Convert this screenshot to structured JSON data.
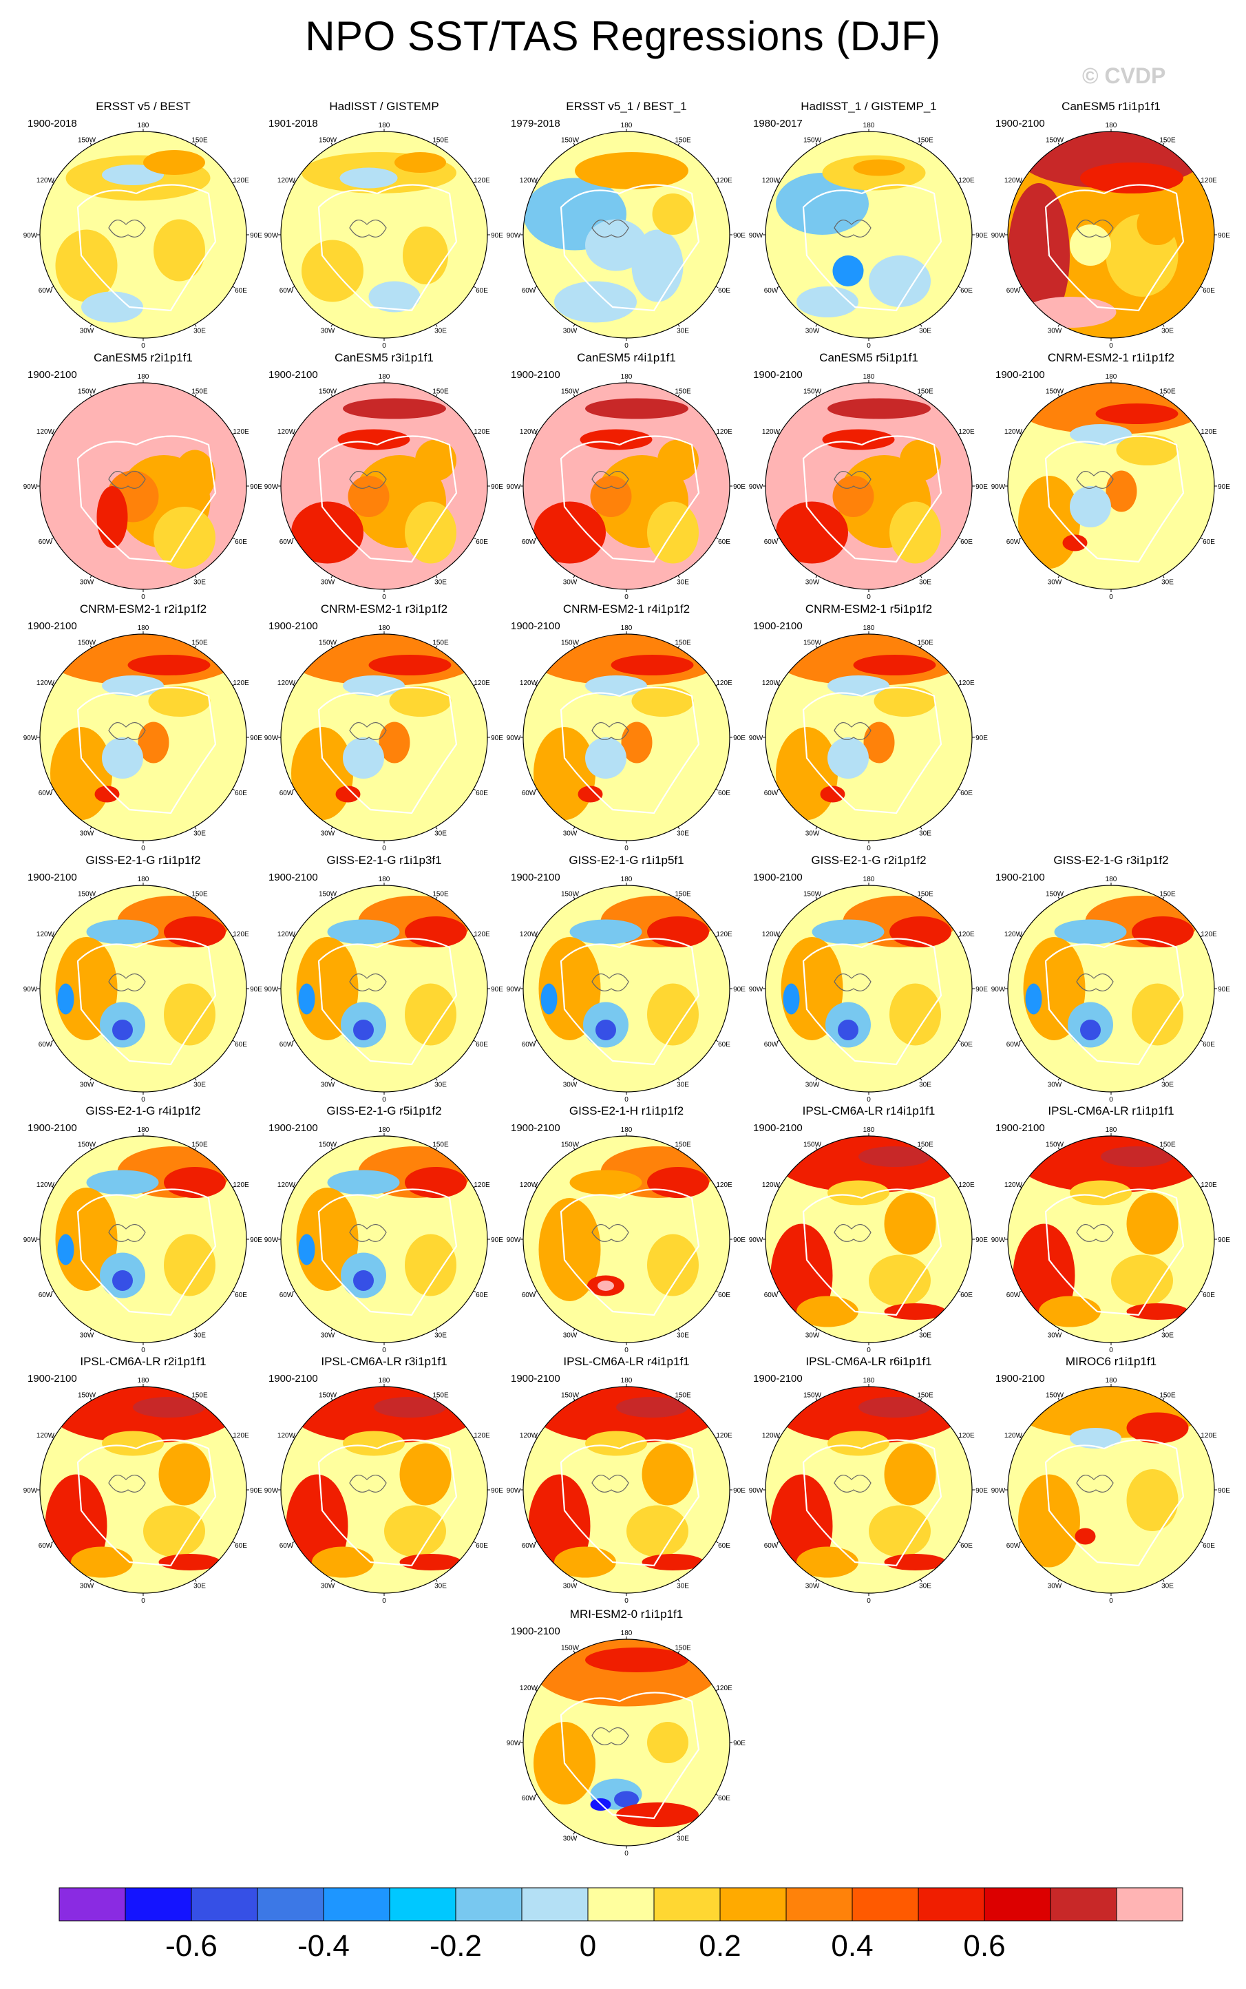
{
  "title": "NPO SST/TAS Regressions (DJF)",
  "watermark": "© CVDP",
  "panels": [
    {
      "title": "ERSST v5 / BEST",
      "years": "1900-2018",
      "style": "obs1"
    },
    {
      "title": "HadISST / GISTEMP",
      "years": "1901-2018",
      "style": "obs2"
    },
    {
      "title": "ERSST v5_1 / BEST_1",
      "years": "1979-2018",
      "style": "obs3"
    },
    {
      "title": "HadISST_1 / GISTEMP_1",
      "years": "1980-2017",
      "style": "obs4"
    },
    {
      "title": "CanESM5 r1i1p1f1",
      "years": "1900-2100",
      "style": "can1"
    },
    {
      "title": "CanESM5 r2i1p1f1",
      "years": "1900-2100",
      "style": "can2"
    },
    {
      "title": "CanESM5 r3i1p1f1",
      "years": "1900-2100",
      "style": "can"
    },
    {
      "title": "CanESM5 r4i1p1f1",
      "years": "1900-2100",
      "style": "can"
    },
    {
      "title": "CanESM5 r5i1p1f1",
      "years": "1900-2100",
      "style": "can"
    },
    {
      "title": "CNRM-ESM2-1 r1i1p1f2",
      "years": "1900-2100",
      "style": "cnrm"
    },
    {
      "title": "CNRM-ESM2-1 r2i1p1f2",
      "years": "1900-2100",
      "style": "cnrm"
    },
    {
      "title": "CNRM-ESM2-1 r3i1p1f2",
      "years": "1900-2100",
      "style": "cnrm"
    },
    {
      "title": "CNRM-ESM2-1 r4i1p1f2",
      "years": "1900-2100",
      "style": "cnrm"
    },
    {
      "title": "CNRM-ESM2-1 r5i1p1f2",
      "years": "1900-2100",
      "style": "cnrm"
    },
    {
      "title": "GISS-E2-1-G r1i1p1f2",
      "years": "1900-2100",
      "style": "giss"
    },
    {
      "title": "GISS-E2-1-G r1i1p3f1",
      "years": "1900-2100",
      "style": "giss"
    },
    {
      "title": "GISS-E2-1-G r1i1p5f1",
      "years": "1900-2100",
      "style": "giss"
    },
    {
      "title": "GISS-E2-1-G r2i1p1f2",
      "years": "1900-2100",
      "style": "giss"
    },
    {
      "title": "GISS-E2-1-G r3i1p1f2",
      "years": "1900-2100",
      "style": "giss"
    },
    {
      "title": "GISS-E2-1-G r4i1p1f2",
      "years": "1900-2100",
      "style": "giss"
    },
    {
      "title": "GISS-E2-1-G r5i1p1f2",
      "years": "1900-2100",
      "style": "giss"
    },
    {
      "title": "GISS-E2-1-H r1i1p1f2",
      "years": "1900-2100",
      "style": "gissh"
    },
    {
      "title": "IPSL-CM6A-LR r14i1p1f1",
      "years": "1900-2100",
      "style": "ipsl"
    },
    {
      "title": "IPSL-CM6A-LR r1i1p1f1",
      "years": "1900-2100",
      "style": "ipsl"
    },
    {
      "title": "IPSL-CM6A-LR r2i1p1f1",
      "years": "1900-2100",
      "style": "ipsl"
    },
    {
      "title": "IPSL-CM6A-LR r3i1p1f1",
      "years": "1900-2100",
      "style": "ipsl"
    },
    {
      "title": "IPSL-CM6A-LR r4i1p1f1",
      "years": "1900-2100",
      "style": "ipsl"
    },
    {
      "title": "IPSL-CM6A-LR r6i1p1f1",
      "years": "1900-2100",
      "style": "ipsl"
    },
    {
      "title": "MIROC6 r1i1p1f1",
      "years": "1900-2100",
      "style": "miroc"
    },
    {
      "title": "MRI-ESM2-0 r1i1p1f1",
      "years": "1900-2100",
      "style": "mri"
    }
  ],
  "map_labels": {
    "top": "180",
    "top_left": "150W",
    "top_right": "150E",
    "upper_left": "120W",
    "upper_right": "120E",
    "mid_left": "90W",
    "mid_right": "90E",
    "lower_left": "60W",
    "lower_right": "60E",
    "bottom_left": "30W",
    "bottom_right": "30E",
    "bottom": "0"
  },
  "colorbar": {
    "colors": [
      "#8a2be2",
      "#1414ff",
      "#3650e6",
      "#3c78e6",
      "#1e96ff",
      "#00c8ff",
      "#78c8f0",
      "#b4e0f5",
      "#ffff9e",
      "#ffd732",
      "#ffaa00",
      "#ff820a",
      "#ff5a00",
      "#f01e00",
      "#dc0000",
      "#c82828",
      "#ffb4b4"
    ],
    "ticks": [
      "-0.6",
      "-0.4",
      "-0.2",
      "0",
      "0.2",
      "0.4",
      "0.6"
    ],
    "tick_boundaries": [
      2,
      4,
      6,
      8,
      10,
      12,
      14
    ]
  }
}
